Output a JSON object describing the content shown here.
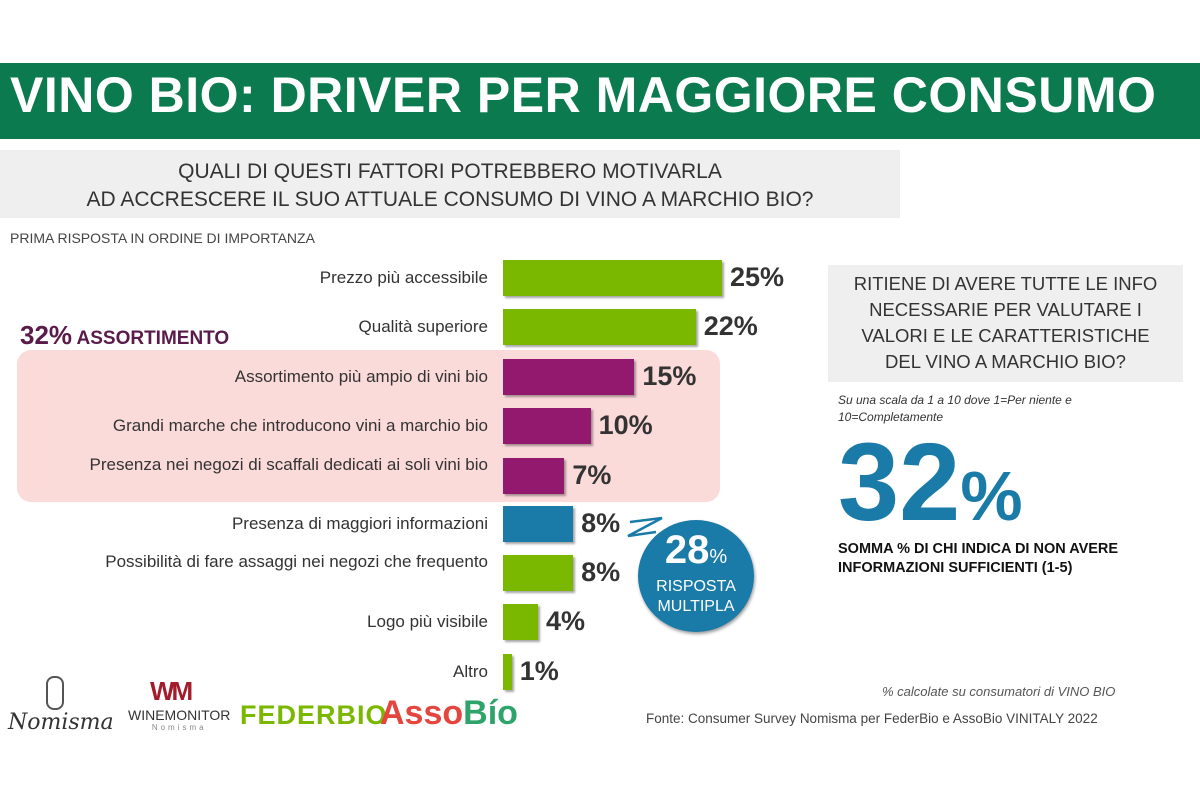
{
  "header": {
    "title": "VINO BIO: DRIVER PER MAGGIORE CONSUMO"
  },
  "question": {
    "line1": "QUALI DI QUESTI FATTORI POTREBBERO MOTIVARLA",
    "line2": "AD ACCRESCERE IL SUO ATTUALE CONSUMO DI VINO A MARCHIO BIO?"
  },
  "subtitle": "PRIMA RISPOSTA IN ORDINE DI IMPORTANZA",
  "assortimento": {
    "value": "32%",
    "label": "ASSORTIMENTO"
  },
  "chart_data": {
    "type": "bar",
    "orientation": "horizontal",
    "title": "PRIMA RISPOSTA IN ORDINE DI IMPORTANZA",
    "categories": [
      "Prezzo più accessibile",
      "Qualità superiore",
      "Assortimento più ampio di vini bio",
      "Grandi marche che introducono vini a marchio bio",
      "Presenza nei negozi di scaffali dedicati ai soli vini bio",
      "Presenza di maggiori informazioni",
      "Possibilità di fare assaggi nei negozi che frequento",
      "Logo più visibile",
      "Altro"
    ],
    "values": [
      25,
      22,
      15,
      10,
      7,
      8,
      8,
      4,
      1
    ],
    "value_labels": [
      "25%",
      "22%",
      "15%",
      "10%",
      "7%",
      "8%",
      "8%",
      "4%",
      "1%"
    ],
    "colors": [
      "#7ab800",
      "#7ab800",
      "#92196e",
      "#92196e",
      "#92196e",
      "#1a7aa8",
      "#7ab800",
      "#7ab800",
      "#7ab800"
    ],
    "unit": "%",
    "xlim": [
      0,
      25
    ]
  },
  "multi": {
    "value": "28",
    "pct": "%",
    "line1": "RISPOSTA",
    "line2": "MULTIPLA"
  },
  "right": {
    "q1": "RITIENE DI AVERE TUTTE LE INFO",
    "q2": "NECESSARIE PER VALUTARE I",
    "q3": "VALORI E LE CARATTERISTICHE",
    "q4": "DEL VINO A MARCHIO BIO?",
    "scale": "Su una scala da 1 a 10 dove 1=Per niente e 10=Completamente",
    "big_value": "32",
    "big_pct": "%",
    "somma1": "SOMMA % DI CHI INDICA DI NON AVERE",
    "somma2": "INFORMAZIONI SUFFICIENTI (1-5)"
  },
  "footer": {
    "note": "% calcolate  su consumatori di VINO BIO",
    "source": "Fonte:  Consumer Survey Nomisma per FederBio e AssoBio VINITALY 2022"
  },
  "logos": {
    "nomisma": "Nomisma",
    "winemonitor": "WINEMONITOR",
    "winemonitor_sub": "Nomisma",
    "federbio": "FEDERBIO",
    "assobio_a": "Asso",
    "assobio_b": "Bío"
  },
  "colors": {
    "header": "#0b7a4f",
    "green": "#7ab800",
    "purple": "#92196e",
    "blue": "#1a7aa8"
  }
}
